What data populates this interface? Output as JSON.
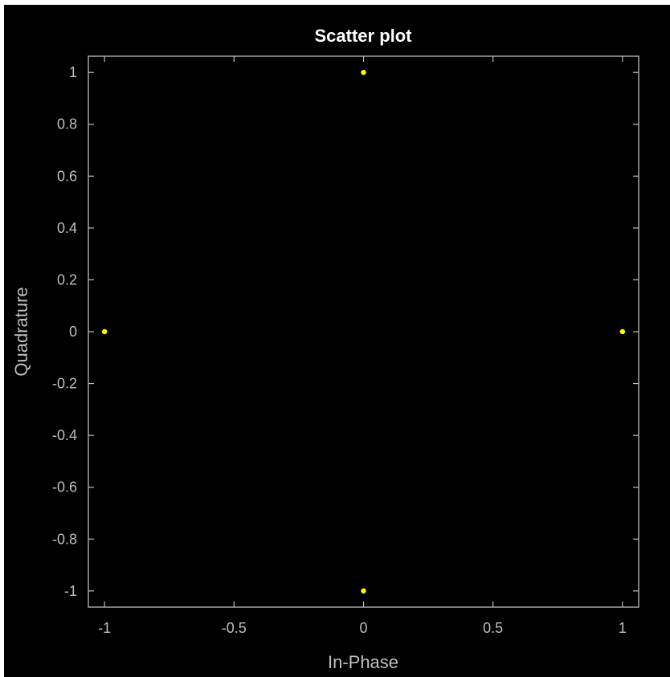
{
  "chart_data": {
    "type": "scatter",
    "title": "Scatter plot",
    "xlabel": "In-Phase",
    "ylabel": "Quadrature",
    "xlim": [
      -1.0625,
      1.0625
    ],
    "ylim": [
      -1.0625,
      1.0625
    ],
    "grid": false,
    "x_ticks": [
      -1,
      -0.5,
      0,
      0.5,
      1
    ],
    "x_tick_labels": [
      "-1",
      "-0.5",
      "0",
      "0.5",
      "1"
    ],
    "y_ticks": [
      1,
      0.8,
      0.6,
      0.4,
      0.2,
      0,
      -0.2,
      -0.4,
      -0.6,
      -0.8,
      -1
    ],
    "y_tick_labels": [
      "1",
      "0.8",
      "0.6",
      "0.4",
      "0.2",
      "0",
      "-0.2",
      "-0.4",
      "-0.6",
      "-0.8",
      "-1"
    ],
    "points": [
      {
        "x": 0,
        "y": 1
      },
      {
        "x": -1,
        "y": 0
      },
      {
        "x": 1,
        "y": 0
      },
      {
        "x": 0,
        "y": -1
      }
    ],
    "colors": {
      "figure_background": "#000000",
      "axes_background": "#000000",
      "axes_line": "#bfbfbf",
      "marker": "#ffff00",
      "title": "#ffffff",
      "text": "#bfbfbf"
    }
  }
}
